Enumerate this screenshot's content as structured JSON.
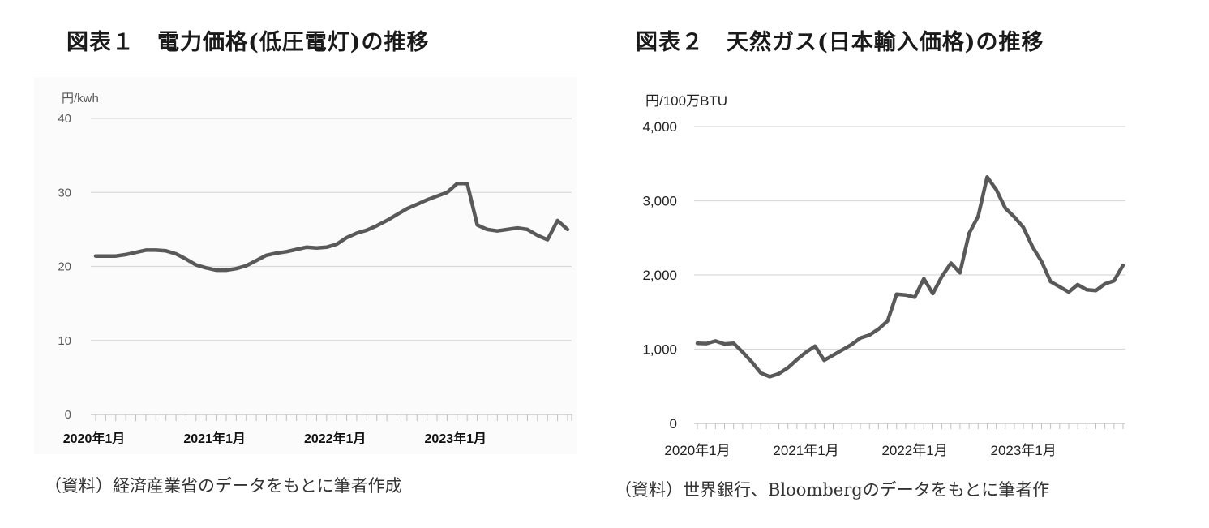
{
  "figures": [
    {
      "title": "図表１　電力価格(低圧電灯)の推移",
      "unit": "円/kwh",
      "source": "（資料）経済産業省のデータをもとに筆者作成"
    },
    {
      "title": "図表２　天然ガス(日本輸入価格)の推移",
      "unit": "円/100万BTU",
      "source": "（資料）世界銀行、Bloombergのデータをもとに筆者作"
    }
  ],
  "chart_data": [
    {
      "type": "line",
      "title": "図表１　電力価格(低圧電灯)の推移",
      "xlabel": "",
      "ylabel": "円/kwh",
      "ylim": [
        0,
        40
      ],
      "yticks": [
        0,
        10,
        20,
        30,
        40
      ],
      "ytick_labels": [
        "0",
        "10",
        "20",
        "30",
        "40"
      ],
      "xtick_labels": [
        "2020年1月",
        "2021年1月",
        "2022年1月",
        "2023年1月"
      ],
      "xtick_index": [
        0,
        12,
        24,
        36
      ],
      "n_points": 48,
      "grid": true,
      "color": "#595959",
      "series": [
        {
          "values": [
            21.4,
            21.4,
            21.4,
            21.6,
            21.9,
            22.2,
            22.2,
            22.1,
            21.7,
            21.0,
            20.2,
            19.8,
            19.5,
            19.5,
            19.7,
            20.1,
            20.8,
            21.5,
            21.8,
            22.0,
            22.3,
            22.6,
            22.5,
            22.6,
            23.0,
            23.9,
            24.5,
            24.9,
            25.5,
            26.2,
            27.0,
            27.8,
            28.4,
            29.0,
            29.5,
            30.0,
            31.2,
            31.2,
            25.6,
            25.0,
            24.8,
            25.0,
            25.2,
            25.0,
            24.2,
            23.6,
            26.2,
            25.0
          ]
        }
      ]
    },
    {
      "type": "line",
      "title": "図表２　天然ガス(日本輸入価格)の推移",
      "xlabel": "",
      "ylabel": "円/100万BTU",
      "ylim": [
        0,
        4000
      ],
      "yticks": [
        0,
        1000,
        2000,
        3000,
        4000
      ],
      "ytick_labels": [
        "0",
        "1,000",
        "2,000",
        "3,000",
        "4,000"
      ],
      "xtick_labels": [
        "2020年1月",
        "2021年1月",
        "2022年1月",
        "2023年1月"
      ],
      "xtick_index": [
        0,
        12,
        24,
        36
      ],
      "n_points": 48,
      "grid": true,
      "color": "#595959",
      "series": [
        {
          "values": [
            1080,
            1075,
            1110,
            1070,
            1080,
            960,
            830,
            680,
            630,
            670,
            750,
            860,
            960,
            1040,
            850,
            920,
            990,
            1060,
            1150,
            1190,
            1270,
            1380,
            1740,
            1730,
            1700,
            1950,
            1750,
            1980,
            2160,
            2030,
            2560,
            2790,
            3320,
            3150,
            2900,
            2780,
            2640,
            2380,
            2180,
            1910,
            1840,
            1770,
            1870,
            1800,
            1790,
            1880,
            1920,
            2130
          ]
        }
      ]
    }
  ]
}
